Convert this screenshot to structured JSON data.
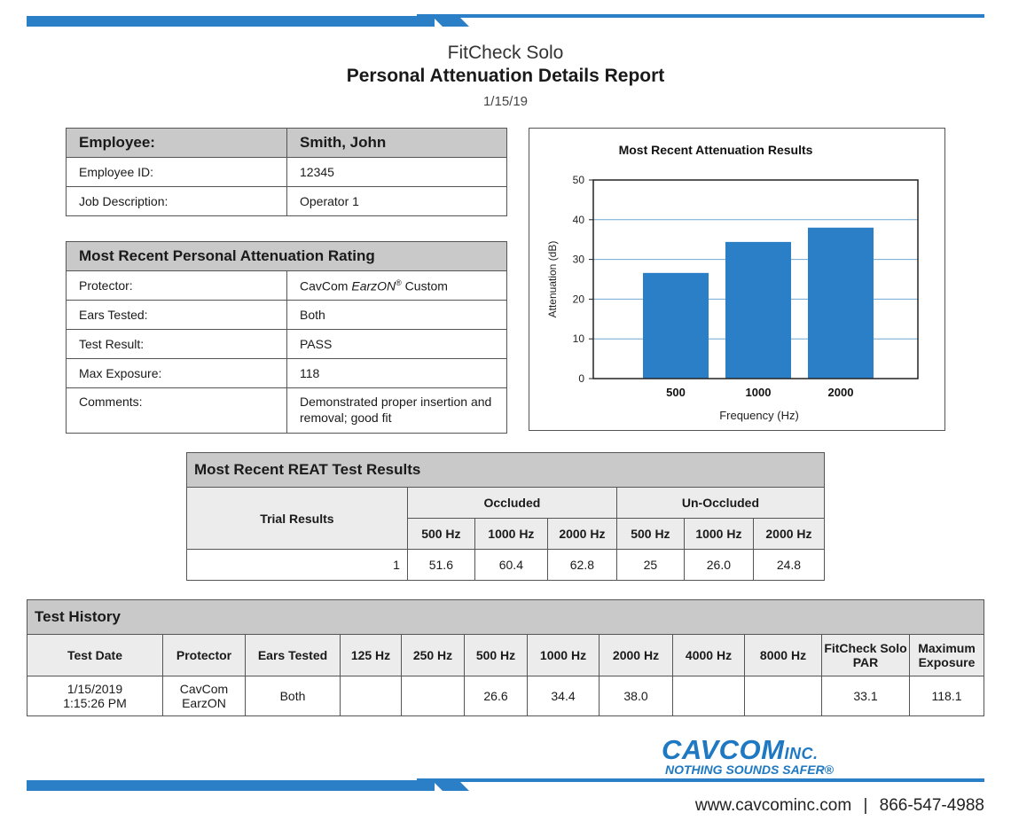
{
  "header": {
    "app_name": "FitCheck Solo",
    "report_title": "Personal Attenuation Details Report",
    "date": "1/15/19"
  },
  "employee": {
    "label": "Employee:",
    "name": "Smith, John",
    "rows": [
      {
        "label": "Employee ID:",
        "value": "12345"
      },
      {
        "label": "Job Description:",
        "value": "Operator 1"
      }
    ]
  },
  "rating": {
    "title": "Most Recent Personal Attenuation Rating",
    "protector_label": "Protector:",
    "protector_value_1": "CavCom ",
    "protector_value_2": "EarzON",
    "protector_value_3": "®",
    "protector_value_4": " Custom",
    "ears_label": "Ears Tested:",
    "ears_value": "Both",
    "result_label": "Test Result:",
    "result_value": "PASS",
    "exposure_label": "Max Exposure:",
    "exposure_value": "118",
    "comments_label": "Comments:",
    "comments_value": "Demonstrated proper insertion and removal; good fit"
  },
  "chart_data": {
    "type": "bar",
    "title": "Most Recent Attenuation Results",
    "categories": [
      "500",
      "1000",
      "2000"
    ],
    "values": [
      26.6,
      34.4,
      38.0
    ],
    "xlabel": "Frequency (Hz)",
    "ylabel": "Attenuation (dB)",
    "ylim": [
      0,
      50
    ],
    "yticks": [
      0,
      10,
      20,
      30,
      40,
      50
    ],
    "grid": true,
    "bar_color": "#2a7fc6"
  },
  "reat": {
    "title": "Most Recent REAT Test Results",
    "trial_label": "Trial Results",
    "occluded_label": "Occluded",
    "unoccluded_label": "Un-Occluded",
    "freqs": [
      "500 Hz",
      "1000 Hz",
      "2000 Hz",
      "500 Hz",
      "1000 Hz",
      "2000 Hz"
    ],
    "trial": "1",
    "values": [
      "51.6",
      "60.4",
      "62.8",
      "25",
      "26.0",
      "24.8"
    ]
  },
  "history": {
    "title": "Test History",
    "columns": [
      "Test Date",
      "Protector",
      "Ears Tested",
      "125 Hz",
      "250 Hz",
      "500 Hz",
      "1000 Hz",
      "2000 Hz",
      "4000 Hz",
      "8000 Hz",
      "FitCheck Solo PAR",
      "Maximum Exposure"
    ],
    "row": {
      "date_1": "1/15/2019",
      "date_2": "1:15:26 PM",
      "protector_1": "CavCom",
      "protector_2": "EarzON",
      "ears": "Both",
      "hz125": "",
      "hz250": "",
      "hz500": "26.6",
      "hz1000": "34.4",
      "hz2000": "38.0",
      "hz4000": "",
      "hz8000": "",
      "par": "33.1",
      "max_exposure": "118.1"
    }
  },
  "footer": {
    "logo_text": "CAVCOM",
    "logo_inc": "INC.",
    "tagline": "NOTHING SOUNDS SAFER®",
    "website": "www.cavcominc.com",
    "separator": "|",
    "phone": "866-547-4988",
    "brand_color": "#1e78c2"
  }
}
